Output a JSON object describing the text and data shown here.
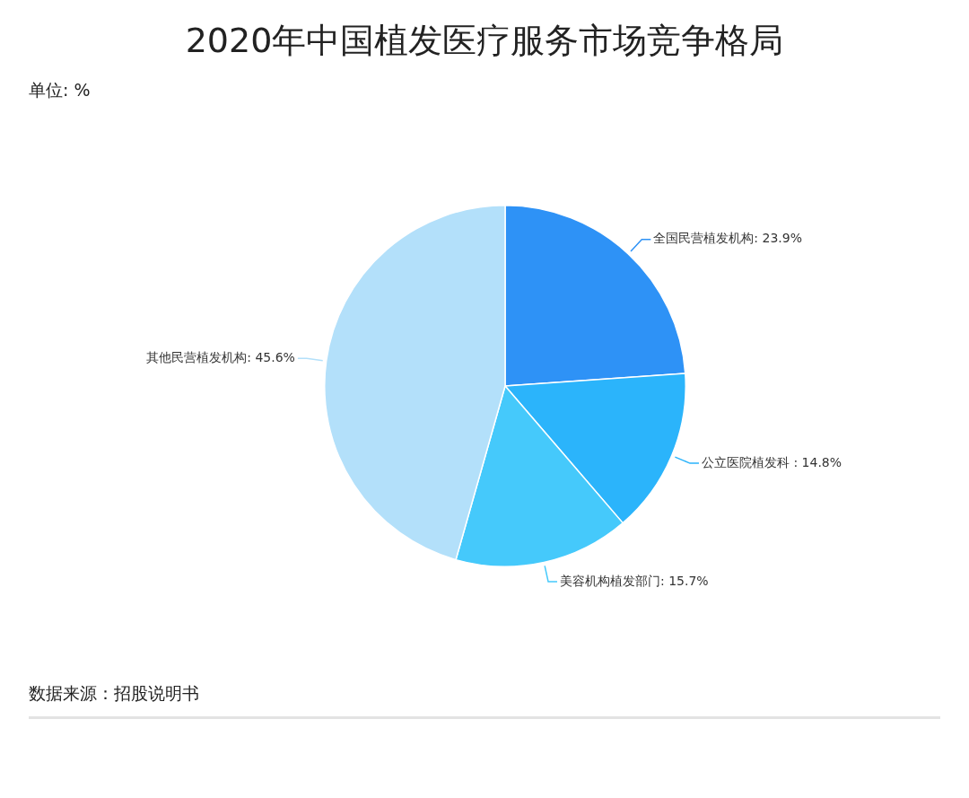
{
  "chart_data": {
    "type": "pie",
    "title": "2020年中国植发医疗服务市场竞争格局",
    "subtitle": "单位: %",
    "categories": [
      "全国民营植发机构",
      "公立医院植发科 ",
      "美容机构植发部门",
      "其他民营植发机构"
    ],
    "values": [
      23.9,
      14.8,
      15.7,
      45.6
    ],
    "colors": [
      "#2e92f6",
      "#2bb4fb",
      "#45c9fb",
      "#b3e0fa"
    ],
    "value_labels": [
      "23.9%",
      "14.8%",
      "15.7%",
      "45.6%"
    ],
    "annotations": [
      "数据来源：招股说明书"
    ],
    "legend": false
  }
}
